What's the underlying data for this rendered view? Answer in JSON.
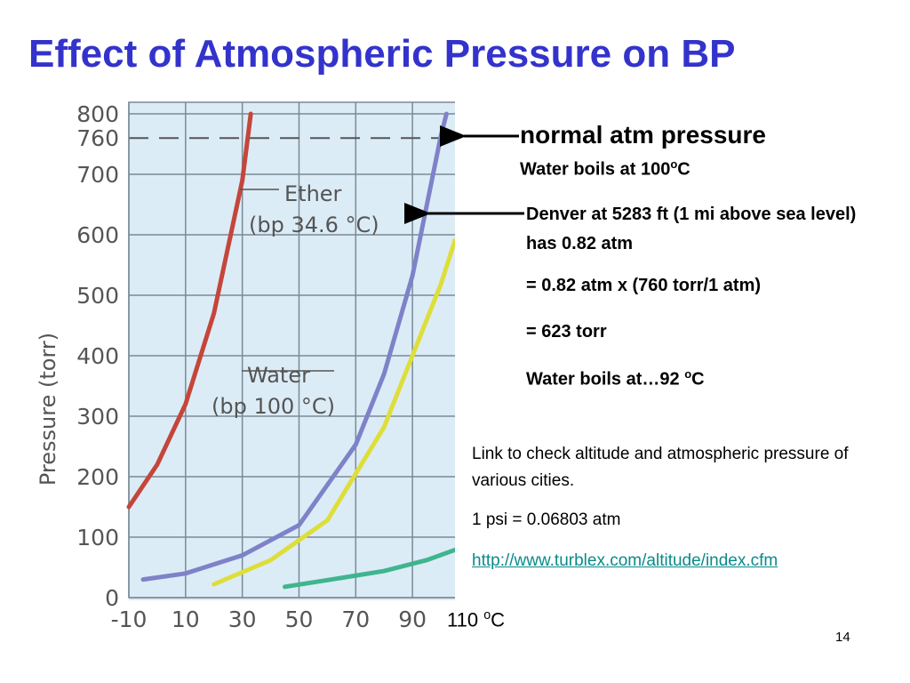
{
  "title": "Effect of Atmospheric Pressure on BP",
  "chart_data": {
    "type": "line",
    "y_label": "Pressure (torr)",
    "xlim": [
      -10,
      105
    ],
    "xticks": [
      -10,
      10,
      30,
      50,
      70,
      90
    ],
    "ylim": [
      0,
      800
    ],
    "yticks": [
      0,
      100,
      200,
      300,
      400,
      500,
      600,
      700,
      760,
      800
    ],
    "grid": true,
    "reference_line": 760,
    "series": [
      {
        "name": "Ether",
        "note": "(bp 34.6 °C)",
        "color": "#c4463a",
        "x": [
          -10,
          0,
          10,
          20,
          30,
          33
        ],
        "values": [
          150,
          220,
          320,
          470,
          690,
          800
        ]
      },
      {
        "name": "Water",
        "note": "(bp 100 °C)",
        "color": "#7f82c8",
        "x": [
          -5,
          10,
          30,
          50,
          70,
          80,
          90,
          100,
          102
        ],
        "values": [
          30,
          40,
          70,
          120,
          253,
          370,
          532,
          763,
          800
        ]
      },
      {
        "color": "#dede3a",
        "x": [
          20,
          40,
          60,
          80,
          90,
          100,
          105
        ],
        "values": [
          22,
          62,
          128,
          282,
          400,
          518,
          591
        ]
      },
      {
        "color": "#3fb58e",
        "x": [
          45,
          60,
          80,
          95,
          105
        ],
        "values": [
          18,
          29,
          44,
          62,
          79
        ]
      }
    ],
    "annotation": [
      "110 ",
      "o",
      "C"
    ]
  },
  "notes": {
    "normal": "normal atm pressure",
    "water_boils": [
      "Water boils at 100",
      "o",
      "C"
    ],
    "denver": "Denver at 5283 ft (1 mi above sea level) has 0.82 atm",
    "conversion": "= 0.82 atm x (760 torr/1 atm)",
    "result": "= 623 torr",
    "denver_boils": [
      "Water boils at…92 ",
      "o",
      "C"
    ],
    "link_text": "Link to check altitude and atmospheric pressure of various cities.",
    "psi": "1 psi = 0.06803 atm",
    "link": "http://www.turblex.com/altitude/index.cfm"
  },
  "page_number": "14"
}
